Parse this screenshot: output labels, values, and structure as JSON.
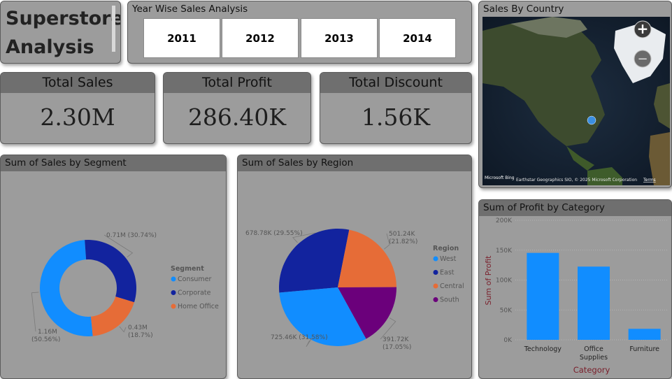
{
  "title": {
    "line1": "Superstore",
    "line2": "Analysis"
  },
  "year_slicer": {
    "title": "Year Wise Sales Analysis",
    "years": [
      "2011",
      "2012",
      "2013",
      "2014"
    ]
  },
  "kpis": [
    {
      "label": "Total Sales",
      "value": "2.30M"
    },
    {
      "label": "Total Profit",
      "value": "286.40K"
    },
    {
      "label": "Total Discount",
      "value": "1.56K"
    }
  ],
  "map": {
    "title": "Sales By Country",
    "attribution": "Earthstar Geographics SIO, © 2025 Microsoft Corporation",
    "terms": "Terms",
    "brand": "Microsoft Bing",
    "zoom_in": "+",
    "zoom_out": "−"
  },
  "segment_chart": {
    "title": "Sum of Sales by Segment",
    "legend_title": "Segment",
    "chart_data": {
      "type": "pie",
      "variant": "donut",
      "categories": [
        "Consumer",
        "Corporate",
        "Home Office"
      ],
      "values": [
        1.16,
        0.71,
        0.43
      ],
      "unit": "M",
      "labels": [
        {
          "value": "1.16M",
          "pct": "(50.56%)"
        },
        {
          "value": "0.71M (30.74%)",
          "pct": ""
        },
        {
          "value": "0.43M",
          "pct": "(18.7%)"
        }
      ],
      "colors": [
        "#118dff",
        "#12239e",
        "#e66c37"
      ],
      "legend_position": "right"
    }
  },
  "region_chart": {
    "title": "Sum of Sales by Region",
    "legend_title": "Region",
    "chart_data": {
      "type": "pie",
      "categories": [
        "West",
        "East",
        "Central",
        "South"
      ],
      "values": [
        725.46,
        678.78,
        501.24,
        391.72
      ],
      "unit": "K",
      "labels": [
        {
          "value": "725.46K (31.58%)",
          "pct": ""
        },
        {
          "value": "678.78K (29.55%)",
          "pct": ""
        },
        {
          "value": "501.24K",
          "pct": "(21.82%)"
        },
        {
          "value": "391.72K",
          "pct": "(17.05%)"
        }
      ],
      "colors": [
        "#118dff",
        "#12239e",
        "#e66c37",
        "#6b007b"
      ],
      "legend_position": "right"
    }
  },
  "profit_chart": {
    "title": "Sum of Profit by Category",
    "chart_data": {
      "type": "bar",
      "categories": [
        "Technology",
        "Office Supplies",
        "Furniture"
      ],
      "category_lines": [
        [
          "Technology"
        ],
        [
          "Office",
          "Supplies"
        ],
        [
          "Furniture"
        ]
      ],
      "values": [
        145.45,
        122.49,
        18.45
      ],
      "xlabel": "Category",
      "ylabel": "Sum of Profit",
      "ylim": [
        0,
        200000
      ],
      "yticks": [
        "0K",
        "50K",
        "100K",
        "150K",
        "200K"
      ],
      "color": "#118dff",
      "grid": true
    }
  }
}
